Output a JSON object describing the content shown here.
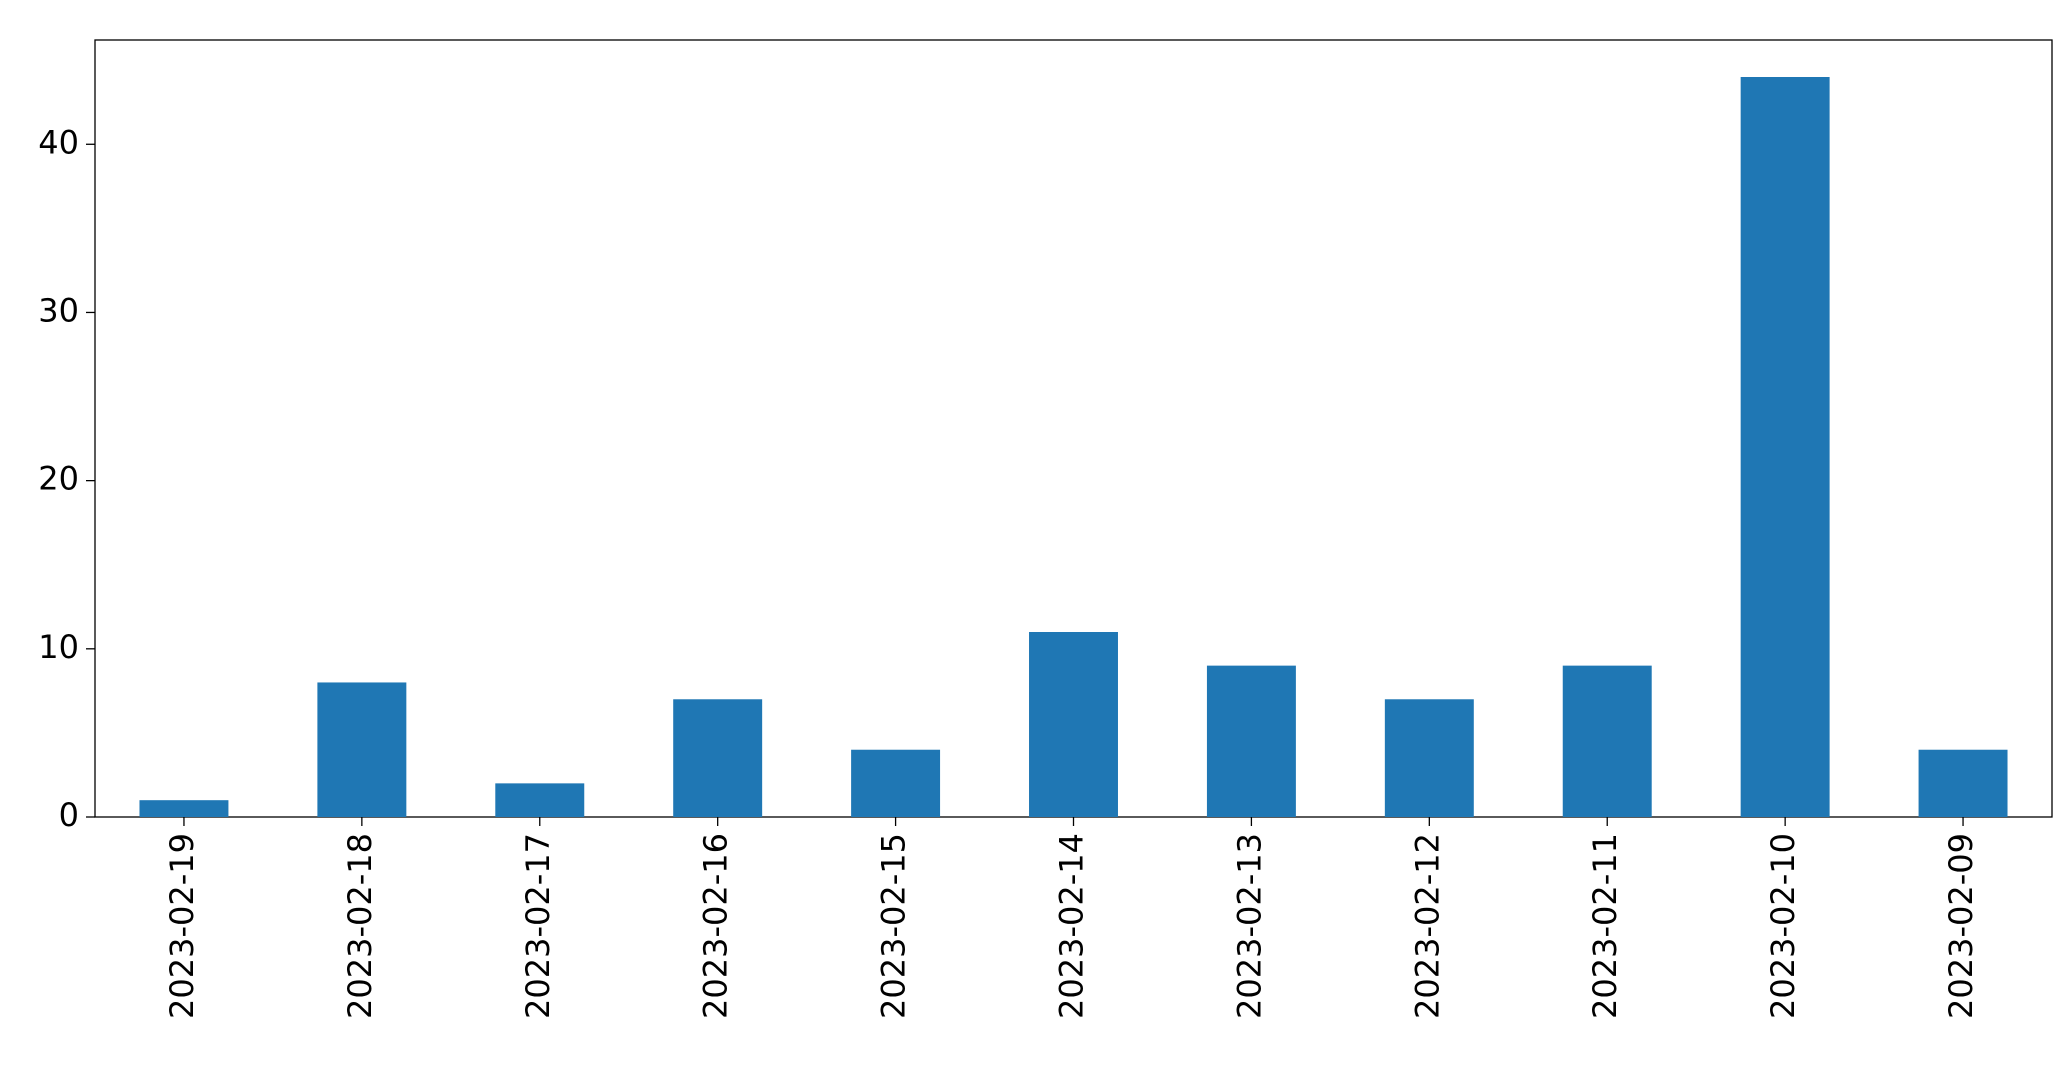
{
  "chart_data": {
    "type": "bar",
    "categories": [
      "2023-02-19",
      "2023-02-18",
      "2023-02-17",
      "2023-02-16",
      "2023-02-15",
      "2023-02-14",
      "2023-02-13",
      "2023-02-12",
      "2023-02-11",
      "2023-02-10",
      "2023-02-09"
    ],
    "values": [
      1,
      8,
      2,
      7,
      4,
      11,
      9,
      7,
      9,
      44,
      4
    ],
    "color": "#1f77b4",
    "ylim": [
      0,
      46.2
    ],
    "yticks": [
      0,
      10,
      20,
      30,
      40
    ],
    "grid": false
  }
}
